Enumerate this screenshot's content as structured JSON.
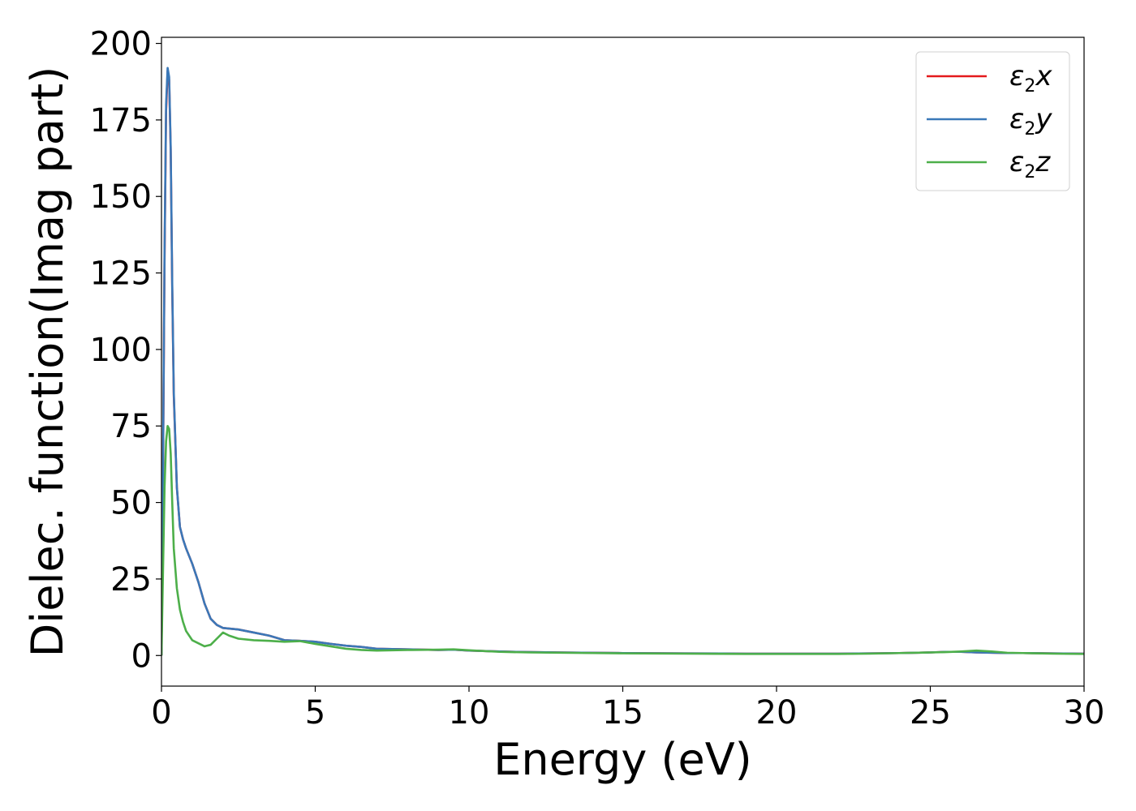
{
  "chart_data": {
    "type": "line",
    "xlabel": "Energy (eV)",
    "ylabel": "Dielec. function(Imag part)",
    "xlim": [
      0,
      30
    ],
    "ylim": [
      -10,
      202
    ],
    "x_ticks": [
      0,
      5,
      10,
      15,
      20,
      25,
      30
    ],
    "y_ticks": [
      0,
      25,
      50,
      75,
      100,
      125,
      150,
      175,
      200
    ],
    "grid": false,
    "legend_position": "top-right",
    "series": [
      {
        "name": "ε2x",
        "legend_base": "ε",
        "legend_sub": "2",
        "legend_tail": "x",
        "color": "#e41a1c",
        "x": [
          0,
          0.05,
          0.1,
          0.15,
          0.2,
          0.25,
          0.3,
          0.35,
          0.4,
          0.5,
          0.6,
          0.7,
          0.8,
          1.0,
          1.2,
          1.4,
          1.6,
          1.8,
          2.0,
          2.2,
          2.5,
          3.0,
          3.5,
          4.0,
          4.5,
          5.0,
          5.5,
          6.0,
          6.5,
          7.0,
          8.0,
          9.0,
          9.5,
          10.0,
          11.0,
          12.0,
          13.0,
          14.0,
          15.0,
          17.0,
          19.0,
          20.0,
          21.0,
          22.0,
          23.0,
          24.0,
          25.0,
          25.5,
          26.0,
          26.5,
          27.0,
          27.5,
          28.0,
          29.0,
          30.0
        ],
        "values": [
          0,
          60,
          130,
          178,
          191,
          188,
          165,
          120,
          85,
          55,
          42,
          38,
          35,
          30,
          24,
          17,
          12,
          10,
          9,
          8.8,
          8.5,
          7.5,
          6.5,
          5.0,
          4.8,
          4.5,
          3.8,
          3.2,
          2.8,
          2.2,
          2.0,
          1.8,
          1.9,
          1.6,
          1.3,
          1.1,
          1.0,
          0.9,
          0.8,
          0.7,
          0.6,
          0.6,
          0.6,
          0.6,
          0.7,
          0.8,
          1.0,
          1.2,
          1.2,
          1.0,
          0.9,
          0.8,
          0.8,
          0.7,
          0.6
        ]
      },
      {
        "name": "ε2y",
        "legend_base": "ε",
        "legend_sub": "2",
        "legend_tail": "y",
        "color": "#3a78b8",
        "x": [
          0,
          0.05,
          0.1,
          0.15,
          0.2,
          0.25,
          0.3,
          0.35,
          0.4,
          0.5,
          0.6,
          0.7,
          0.8,
          1.0,
          1.2,
          1.4,
          1.6,
          1.8,
          2.0,
          2.2,
          2.5,
          3.0,
          3.5,
          4.0,
          4.5,
          5.0,
          5.5,
          6.0,
          6.5,
          7.0,
          8.0,
          9.0,
          9.5,
          10.0,
          11.0,
          12.0,
          13.0,
          14.0,
          15.0,
          17.0,
          19.0,
          20.0,
          21.0,
          22.0,
          23.0,
          24.0,
          25.0,
          25.5,
          26.0,
          26.5,
          27.0,
          27.5,
          28.0,
          29.0,
          30.0
        ],
        "values": [
          0,
          62,
          132,
          180,
          192,
          189,
          166,
          121,
          86,
          55,
          42,
          38,
          35,
          30,
          24,
          17,
          12,
          10,
          9,
          8.8,
          8.5,
          7.5,
          6.5,
          5.0,
          4.8,
          4.5,
          3.8,
          3.2,
          2.8,
          2.2,
          2.0,
          1.8,
          1.9,
          1.6,
          1.3,
          1.1,
          1.0,
          0.9,
          0.8,
          0.7,
          0.6,
          0.6,
          0.6,
          0.6,
          0.7,
          0.8,
          1.0,
          1.2,
          1.2,
          1.0,
          0.9,
          0.8,
          0.8,
          0.7,
          0.6
        ]
      },
      {
        "name": "ε2z",
        "legend_base": "ε",
        "legend_sub": "2",
        "legend_tail": "z",
        "color": "#4daf4a",
        "x": [
          0,
          0.05,
          0.1,
          0.15,
          0.2,
          0.25,
          0.3,
          0.35,
          0.4,
          0.5,
          0.6,
          0.7,
          0.8,
          1.0,
          1.2,
          1.4,
          1.6,
          1.8,
          2.0,
          2.2,
          2.5,
          3.0,
          3.5,
          4.0,
          4.5,
          5.0,
          5.5,
          6.0,
          6.5,
          7.0,
          8.0,
          9.0,
          9.5,
          10.0,
          11.0,
          12.0,
          13.0,
          14.0,
          15.0,
          17.0,
          19.0,
          20.0,
          21.0,
          22.0,
          23.0,
          24.0,
          25.0,
          25.5,
          26.0,
          26.5,
          27.0,
          27.5,
          28.0,
          29.0,
          30.0
        ],
        "values": [
          0,
          28,
          55,
          70,
          75,
          74,
          66,
          50,
          35,
          22,
          15,
          11,
          8,
          5,
          4,
          3,
          3.5,
          5.5,
          7.5,
          6.5,
          5.5,
          5.0,
          4.8,
          4.5,
          4.7,
          3.8,
          3.0,
          2.2,
          1.8,
          1.6,
          1.8,
          1.9,
          2.0,
          1.7,
          1.2,
          1.0,
          0.9,
          0.8,
          0.7,
          0.6,
          0.5,
          0.5,
          0.5,
          0.5,
          0.6,
          0.8,
          1.0,
          1.1,
          1.3,
          1.6,
          1.3,
          0.9,
          0.8,
          0.6,
          0.5
        ]
      }
    ]
  }
}
